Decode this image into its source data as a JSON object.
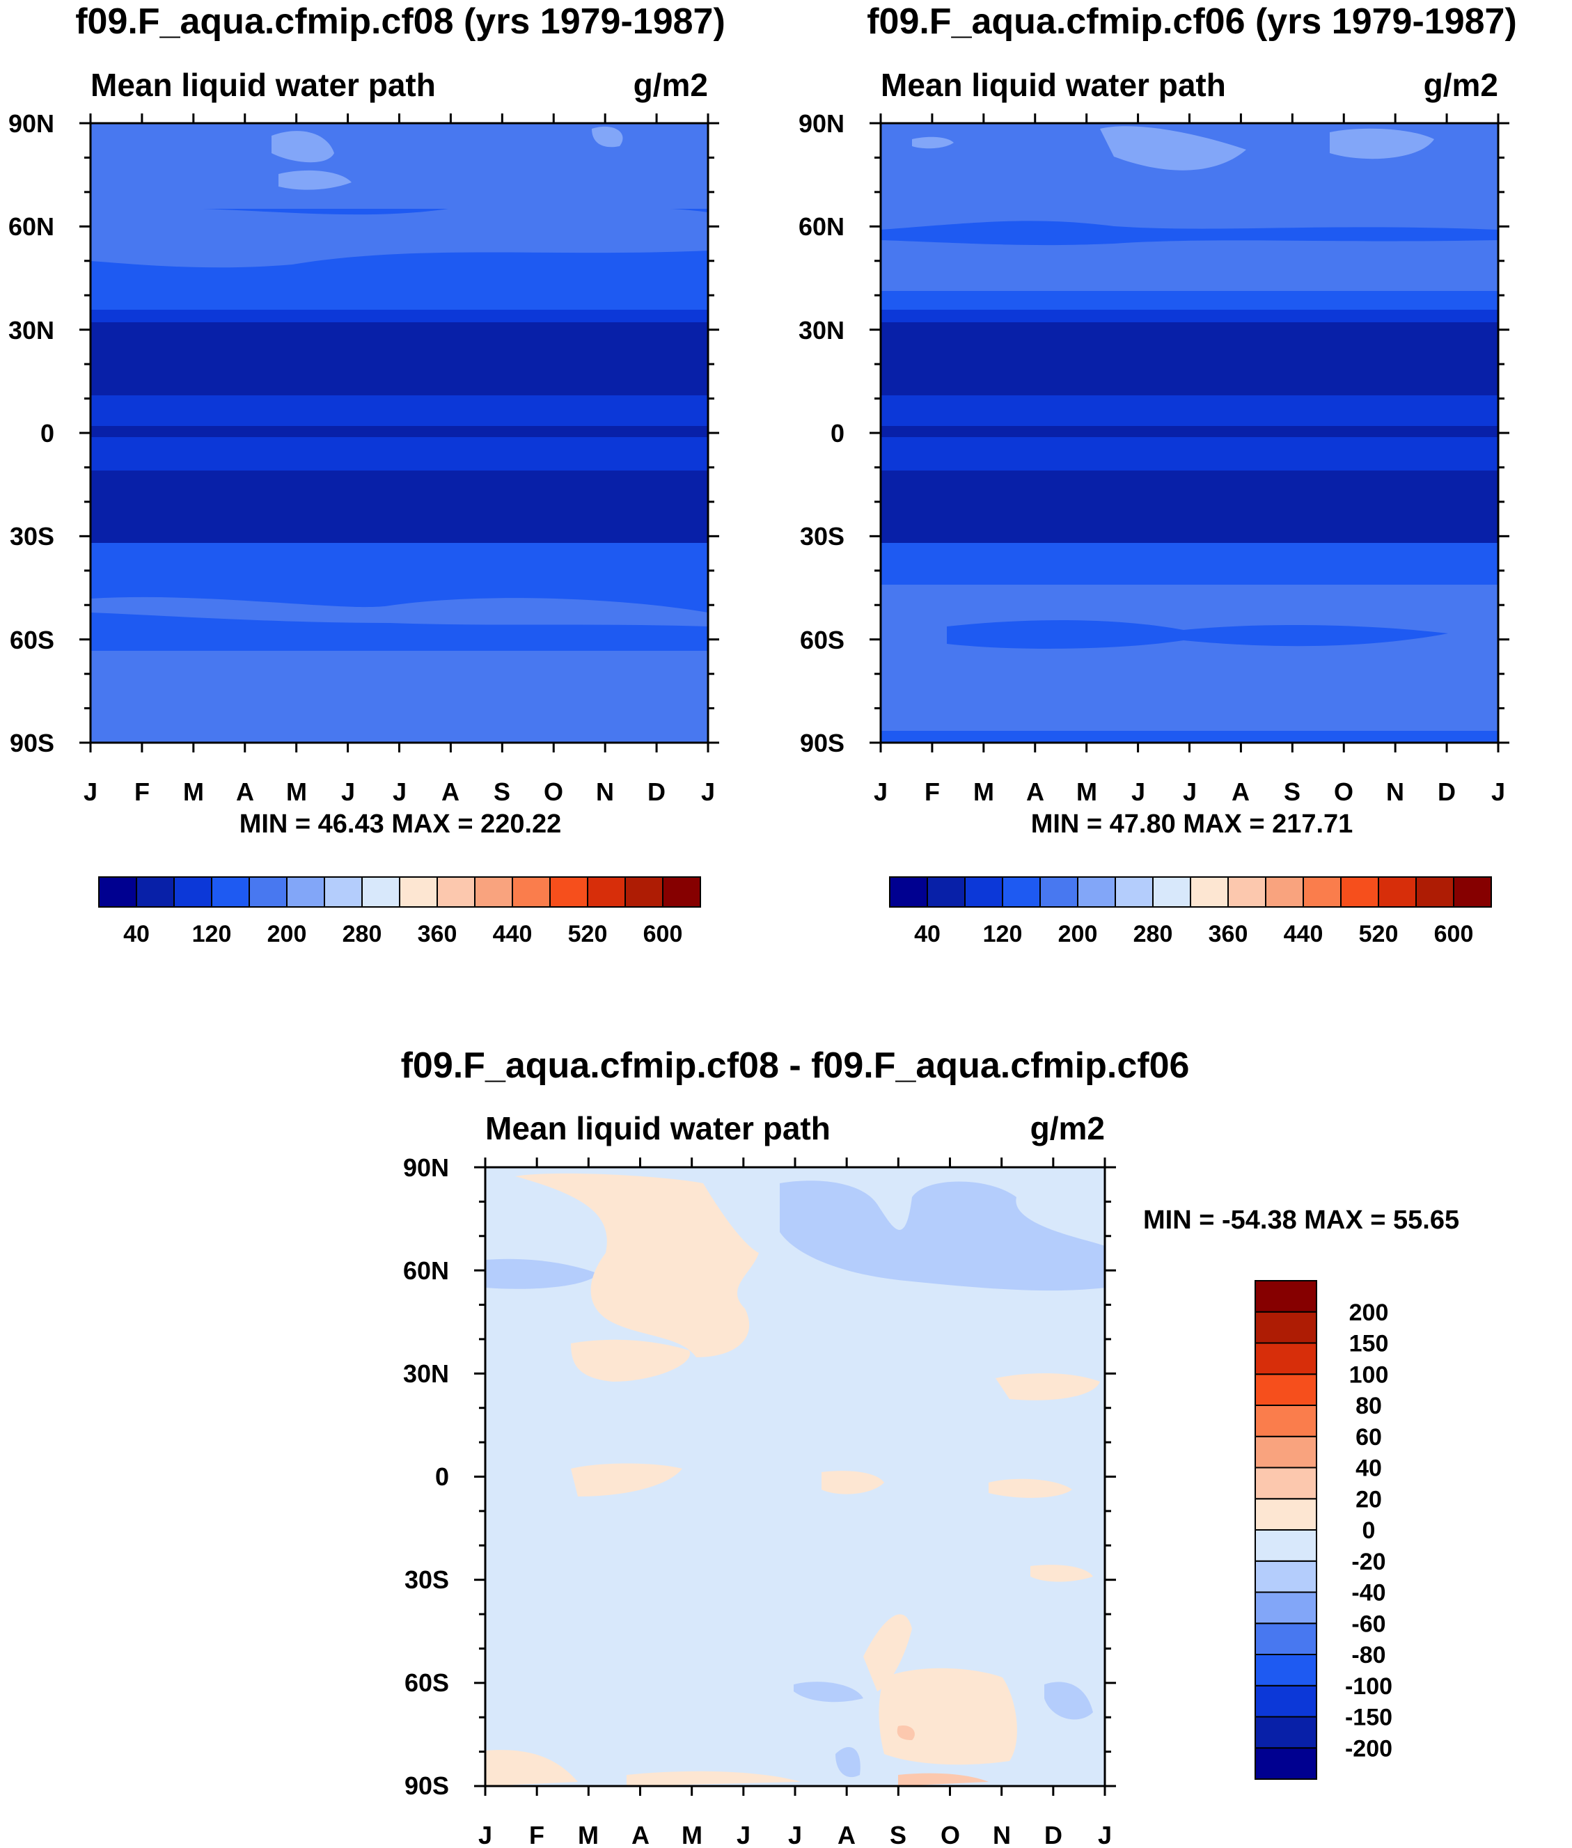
{
  "chart_data": [
    {
      "type": "heatmap",
      "title": "f09.F_aqua.cfmip.cf08 (yrs 1979-1987)",
      "left_label": "Mean liquid water path",
      "right_label": "g/m2",
      "x_ticks": [
        "J",
        "F",
        "M",
        "A",
        "M",
        "J",
        "J",
        "A",
        "S",
        "O",
        "N",
        "D",
        "J"
      ],
      "y_ticks": [
        "90N",
        "60N",
        "30N",
        "0",
        "30S",
        "60S",
        "90S"
      ],
      "stats": "MIN =  46.43 MAX = 220.22",
      "min": 46.43,
      "max": 220.22
    },
    {
      "type": "heatmap",
      "title": "f09.F_aqua.cfmip.cf06 (yrs 1979-1987)",
      "left_label": "Mean liquid water path",
      "right_label": "g/m2",
      "x_ticks": [
        "J",
        "F",
        "M",
        "A",
        "M",
        "J",
        "J",
        "A",
        "S",
        "O",
        "N",
        "D",
        "J"
      ],
      "y_ticks": [
        "90N",
        "60N",
        "30N",
        "0",
        "30S",
        "60S",
        "90S"
      ],
      "stats": "MIN =  47.80 MAX = 217.71",
      "min": 47.8,
      "max": 217.71
    },
    {
      "type": "heatmap",
      "title": "f09.F_aqua.cfmip.cf08 - f09.F_aqua.cfmip.cf06",
      "left_label": "Mean liquid water path",
      "right_label": "g/m2",
      "x_ticks": [
        "J",
        "F",
        "M",
        "A",
        "M",
        "J",
        "J",
        "A",
        "S",
        "O",
        "N",
        "D",
        "J"
      ],
      "y_ticks": [
        "90N",
        "60N",
        "30N",
        "0",
        "30S",
        "60S",
        "90S"
      ],
      "stats": "MIN = -54.38 MAX =  55.65",
      "min": -54.38,
      "max": 55.65
    }
  ],
  "colorbar_main": {
    "colors": [
      "#000090",
      "#0820a8",
      "#0c38d8",
      "#1e5af2",
      "#4878f0",
      "#82a6f8",
      "#b4cdfc",
      "#d8e8fb",
      "#fde6d2",
      "#fcc8ae",
      "#f9a37e",
      "#fa7d4c",
      "#f64f1c",
      "#d72e0a",
      "#ae1c04",
      "#860000"
    ],
    "labels": [
      "40",
      "120",
      "200",
      "280",
      "360",
      "440",
      "520",
      "600"
    ]
  },
  "colorbar_diff": {
    "colors": [
      "#000090",
      "#0820a8",
      "#0c38d8",
      "#1e5af2",
      "#4878f0",
      "#82a6f8",
      "#b4cdfc",
      "#d8e8fb",
      "#fde6d2",
      "#fcc8ae",
      "#f9a37e",
      "#fa7d4c",
      "#f64f1c",
      "#d72e0a",
      "#ae1c04",
      "#860000"
    ],
    "labels": [
      "200",
      "150",
      "100",
      "80",
      "60",
      "40",
      "20",
      "0",
      "-20",
      "-40",
      "-60",
      "-80",
      "-100",
      "-150",
      "-200"
    ]
  }
}
